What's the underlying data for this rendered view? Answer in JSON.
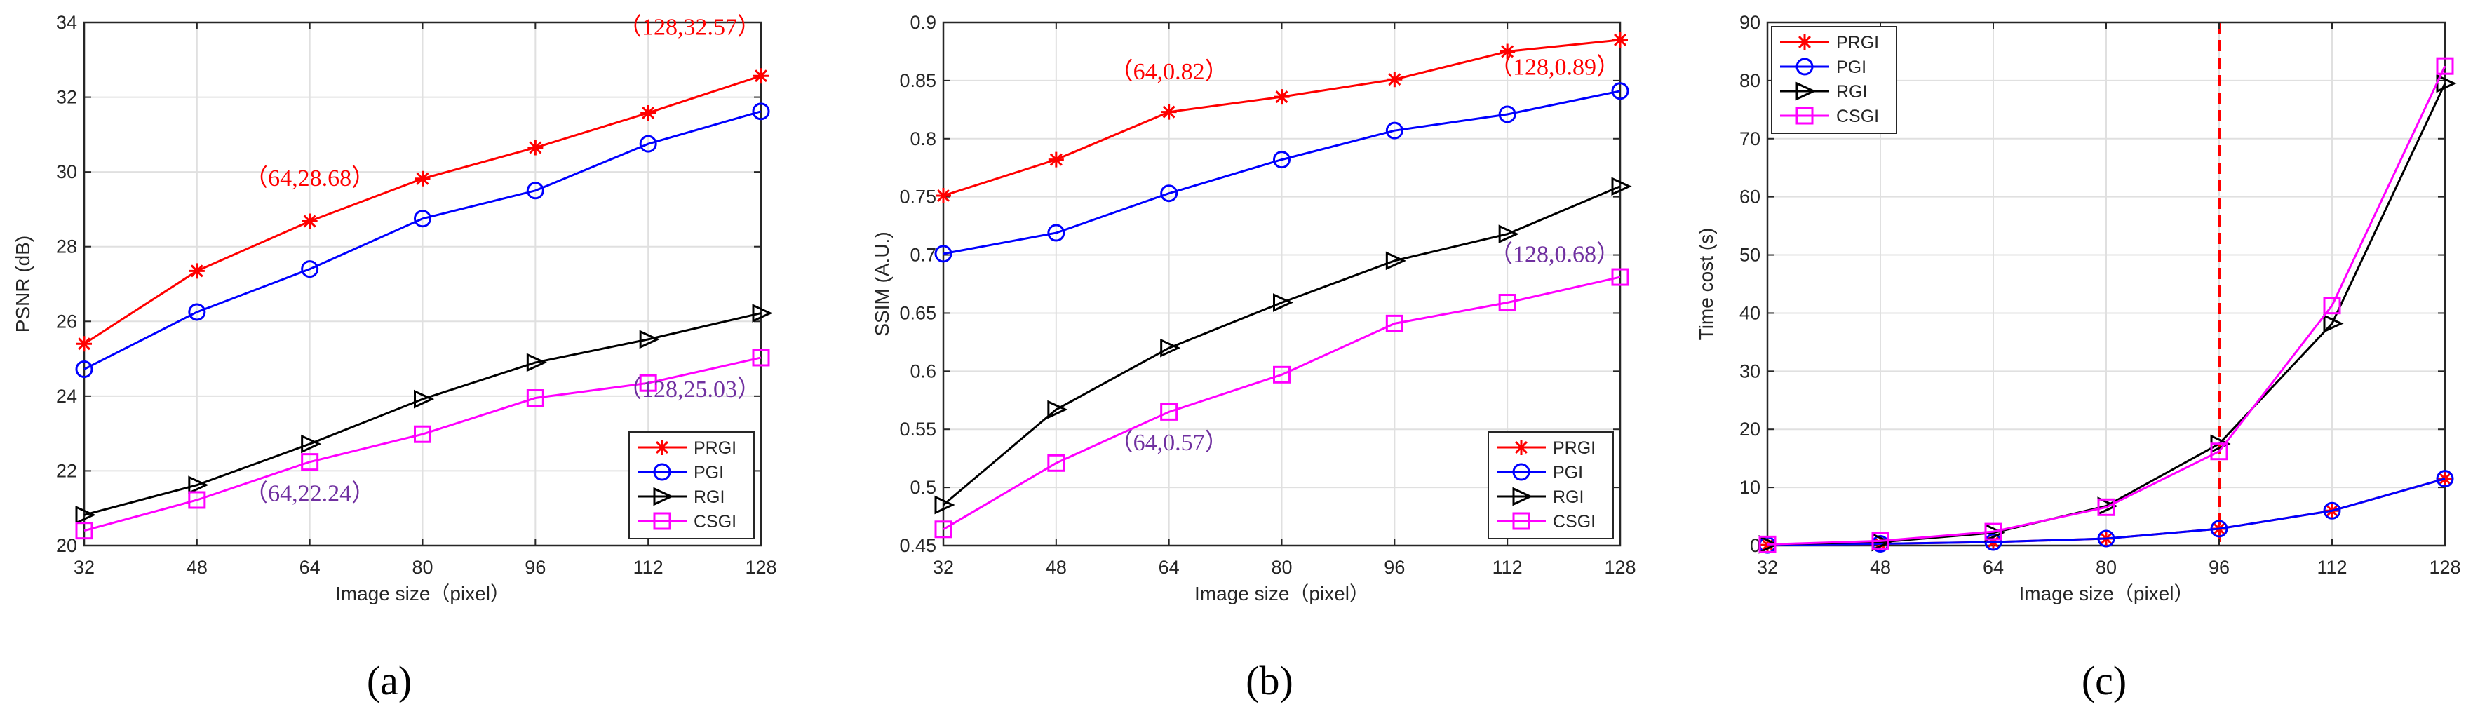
{
  "series_styles": {
    "PRGI": {
      "color": "#ff0000",
      "marker": "asterisk"
    },
    "PGI": {
      "color": "#0000ff",
      "marker": "circle"
    },
    "RGI": {
      "color": "#000000",
      "marker": "triangle-right"
    },
    "CSGI": {
      "color": "#ff00ff",
      "marker": "square"
    }
  },
  "chart_data": [
    {
      "type": "line",
      "caption": "(a)",
      "xlabel": "Image size（pixel）",
      "ylabel": "PSNR (dB)",
      "x": [
        32,
        48,
        64,
        80,
        96,
        112,
        128
      ],
      "xlim": [
        32,
        128
      ],
      "ylim": [
        20,
        34
      ],
      "yticks": [
        20,
        22,
        24,
        26,
        28,
        30,
        32,
        34
      ],
      "ytick_labels": [
        "20",
        "22",
        "24",
        "26",
        "28",
        "30",
        "32",
        "34"
      ],
      "grid": true,
      "legend": {
        "position": "bottom-right",
        "entries": [
          "PRGI",
          "PGI",
          "RGI",
          "CSGI"
        ]
      },
      "series": [
        {
          "name": "PRGI",
          "values": [
            25.4,
            27.35,
            28.68,
            29.82,
            30.65,
            31.58,
            32.57
          ]
        },
        {
          "name": "PGI",
          "values": [
            24.72,
            26.25,
            27.4,
            28.75,
            29.5,
            30.75,
            31.62
          ]
        },
        {
          "name": "RGI",
          "values": [
            20.82,
            21.62,
            22.72,
            23.92,
            24.9,
            25.52,
            26.22
          ]
        },
        {
          "name": "CSGI",
          "values": [
            20.4,
            21.22,
            22.24,
            22.98,
            23.95,
            24.35,
            25.03
          ]
        }
      ],
      "annotations": [
        {
          "text": "（64,28.68）",
          "x": 64,
          "y": 28.68,
          "color": "#ff0000",
          "anchor": "middle",
          "dy_data": 0.95
        },
        {
          "text": "（128,32.57）",
          "x": 128,
          "y": 32.57,
          "color": "#ff0000",
          "anchor": "end",
          "dy_data": 1.1
        },
        {
          "text": "（64,22.24）",
          "x": 64,
          "y": 22.24,
          "color": "#7030a0",
          "anchor": "middle",
          "dy_data": -1.05
        },
        {
          "text": "（128,25.03）",
          "x": 128,
          "y": 25.03,
          "color": "#7030a0",
          "anchor": "end",
          "dy_data": -1.05
        }
      ]
    },
    {
      "type": "line",
      "caption": "(b)",
      "xlabel": "Image size（pixel）",
      "ylabel": "SSIM (A.U.)",
      "x": [
        32,
        48,
        64,
        80,
        96,
        112,
        128
      ],
      "xlim": [
        32,
        128
      ],
      "ylim": [
        0.45,
        0.9
      ],
      "yticks": [
        0.45,
        0.5,
        0.55,
        0.6,
        0.65,
        0.7,
        0.75,
        0.8,
        0.85,
        0.9
      ],
      "ytick_labels": [
        "0.45",
        "0.5",
        "0.55",
        "0.6",
        "0.65",
        "0.7",
        "0.75",
        "0.8",
        "0.85",
        "0.9"
      ],
      "grid": true,
      "legend": {
        "position": "bottom-right",
        "entries": [
          "PRGI",
          "PGI",
          "RGI",
          "CSGI"
        ]
      },
      "series": [
        {
          "name": "PRGI",
          "values": [
            0.751,
            0.782,
            0.823,
            0.836,
            0.851,
            0.875,
            0.885
          ]
        },
        {
          "name": "PGI",
          "values": [
            0.701,
            0.719,
            0.753,
            0.782,
            0.807,
            0.821,
            0.841
          ]
        },
        {
          "name": "RGI",
          "values": [
            0.485,
            0.567,
            0.62,
            0.659,
            0.695,
            0.718,
            0.759
          ]
        },
        {
          "name": "CSGI",
          "values": [
            0.464,
            0.521,
            0.565,
            0.597,
            0.641,
            0.659,
            0.681
          ]
        }
      ],
      "annotations": [
        {
          "text": "（64,0.82）",
          "x": 64,
          "y": 0.823,
          "color": "#ff0000",
          "anchor": "middle",
          "dy_data": 0.028
        },
        {
          "text": "（128,0.89）",
          "x": 128,
          "y": 0.885,
          "color": "#ff0000",
          "anchor": "end",
          "dy_data": -0.03
        },
        {
          "text": "（64,0.57）",
          "x": 64,
          "y": 0.565,
          "color": "#7030a0",
          "anchor": "middle",
          "dy_data": -0.033
        },
        {
          "text": "（128,0.68）",
          "x": 128,
          "y": 0.681,
          "color": "#7030a0",
          "anchor": "end",
          "dy_data": 0.013
        }
      ]
    },
    {
      "type": "line",
      "caption": "(c)",
      "xlabel": "Image size（pixel）",
      "ylabel": "Time cost (s)",
      "x": [
        32,
        48,
        64,
        80,
        96,
        112,
        128
      ],
      "xlim": [
        32,
        128
      ],
      "ylim": [
        0,
        90
      ],
      "yticks": [
        0,
        10,
        20,
        30,
        40,
        50,
        60,
        70,
        80,
        90
      ],
      "ytick_labels": [
        "0",
        "10",
        "20",
        "30",
        "40",
        "50",
        "60",
        "70",
        "80",
        "90"
      ],
      "grid": true,
      "legend": {
        "position": "top-left",
        "entries": [
          "PRGI",
          "PGI",
          "RGI",
          "CSGI"
        ]
      },
      "series": [
        {
          "name": "PRGI",
          "values": [
            0.1,
            0.3,
            0.6,
            1.2,
            2.9,
            6.0,
            11.5
          ]
        },
        {
          "name": "PGI",
          "values": [
            0.1,
            0.3,
            0.6,
            1.2,
            2.9,
            6.0,
            11.5
          ]
        },
        {
          "name": "RGI",
          "values": [
            0.2,
            0.6,
            2.2,
            6.8,
            17.5,
            38.2,
            79.5
          ]
        },
        {
          "name": "CSGI",
          "values": [
            0.2,
            0.8,
            2.4,
            6.6,
            16.2,
            41.3,
            82.5
          ]
        }
      ],
      "reference_line": {
        "x": 96,
        "color": "#ff0000",
        "style": "dashed"
      },
      "annotations": []
    }
  ]
}
